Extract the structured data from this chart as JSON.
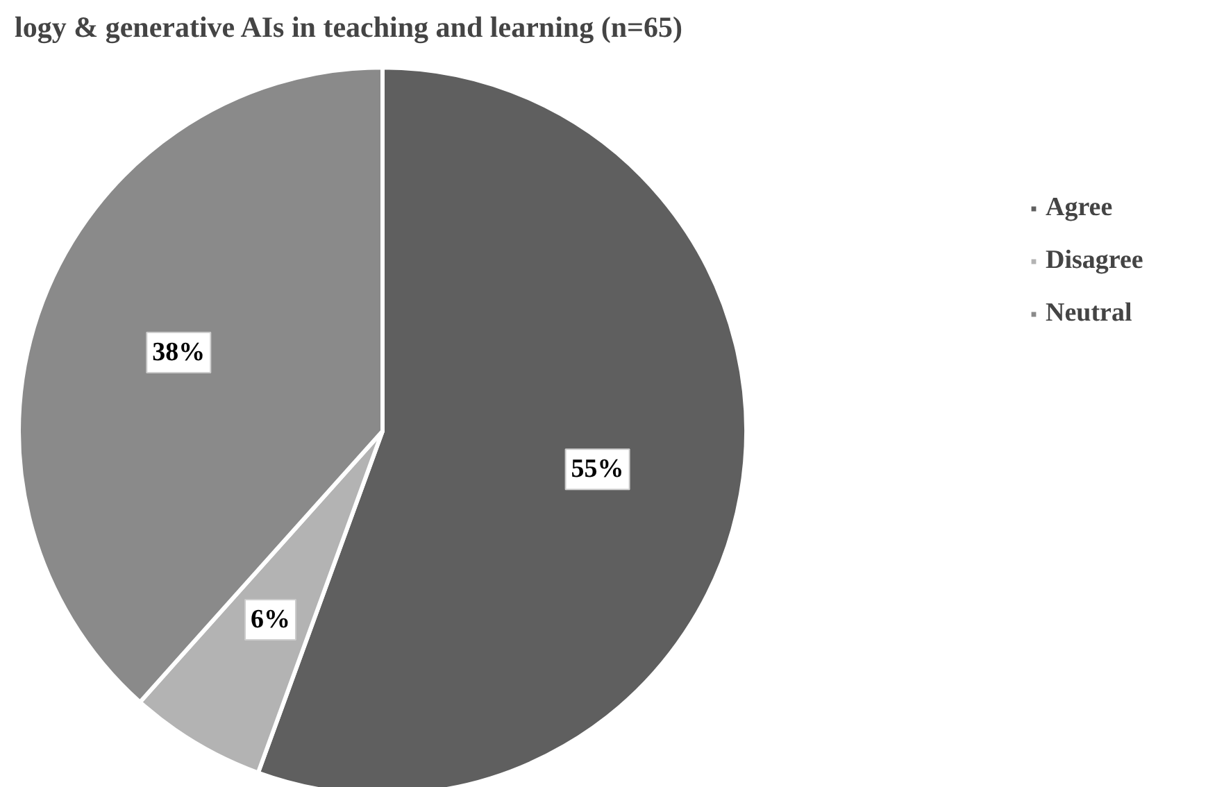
{
  "chart_data": {
    "type": "pie",
    "title": "logy & generative AIs in teaching and learning (n=65)",
    "categories": [
      "Agree",
      "Disagree",
      "Neutral"
    ],
    "values": [
      55,
      6,
      38
    ],
    "colors": [
      "#5f5f5f",
      "#b3b3b3",
      "#8a8a8a"
    ],
    "value_labels": [
      "55%",
      "6%",
      "38%"
    ],
    "legend": "right"
  }
}
